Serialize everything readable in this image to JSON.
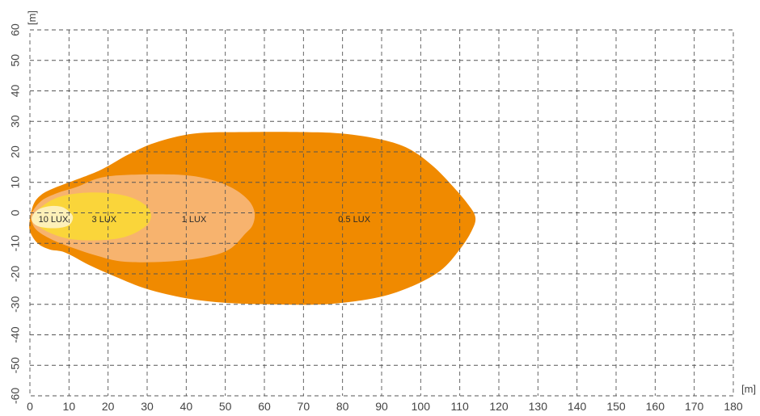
{
  "chart_data": {
    "type": "area",
    "title": "",
    "xlabel": "[m]",
    "ylabel": "[m]",
    "xlim": [
      0,
      180
    ],
    "ylim": [
      -60,
      60
    ],
    "x_ticks": [
      0,
      10,
      20,
      30,
      40,
      50,
      60,
      70,
      80,
      90,
      100,
      110,
      120,
      130,
      140,
      150,
      160,
      170,
      180
    ],
    "y_ticks": [
      60,
      50,
      40,
      30,
      20,
      10,
      0,
      -10,
      -20,
      -30,
      -40,
      -50,
      -60
    ],
    "grid": true,
    "series": [
      {
        "name": "0.5 LUX",
        "color": "#f08a00",
        "label_at": [
          83,
          -2
        ],
        "outline": [
          [
            0,
            -2
          ],
          [
            1,
            3
          ],
          [
            3,
            6
          ],
          [
            6,
            8
          ],
          [
            10,
            10
          ],
          [
            18,
            14
          ],
          [
            25,
            19
          ],
          [
            32,
            23
          ],
          [
            42,
            26
          ],
          [
            55,
            26.5
          ],
          [
            70,
            26.5
          ],
          [
            80,
            26
          ],
          [
            90,
            24
          ],
          [
            97,
            21
          ],
          [
            103,
            15.5
          ],
          [
            108,
            9
          ],
          [
            112,
            3
          ],
          [
            114,
            -1.5
          ],
          [
            113,
            -6
          ],
          [
            110,
            -12
          ],
          [
            105,
            -19
          ],
          [
            97,
            -24.5
          ],
          [
            88,
            -28
          ],
          [
            75,
            -30
          ],
          [
            62,
            -30
          ],
          [
            50,
            -29.5
          ],
          [
            40,
            -28
          ],
          [
            30,
            -25
          ],
          [
            22,
            -21
          ],
          [
            15,
            -17
          ],
          [
            9,
            -13
          ],
          [
            5,
            -12
          ],
          [
            2,
            -10
          ],
          [
            0,
            -6
          ]
        ]
      },
      {
        "name": "1 LUX",
        "color": "#f7b36e",
        "label_at": [
          42,
          -2
        ],
        "outline": [
          [
            0.5,
            0
          ],
          [
            3,
            4
          ],
          [
            7,
            6.5
          ],
          [
            12,
            8.5
          ],
          [
            18,
            11.5
          ],
          [
            26,
            12.5
          ],
          [
            38,
            12.5
          ],
          [
            46,
            11
          ],
          [
            52,
            8
          ],
          [
            56,
            4
          ],
          [
            57.5,
            0
          ],
          [
            57,
            -4
          ],
          [
            55,
            -7
          ],
          [
            51,
            -12
          ],
          [
            45,
            -14.5
          ],
          [
            35,
            -16
          ],
          [
            24,
            -16
          ],
          [
            17,
            -14
          ],
          [
            11,
            -11.5
          ],
          [
            6,
            -9
          ],
          [
            2,
            -6
          ],
          [
            0.5,
            -3
          ]
        ]
      },
      {
        "name": "3 LUX",
        "color": "#fad53a",
        "label_at": [
          19,
          -2
        ],
        "outline": [
          [
            1,
            -1
          ],
          [
            3,
            2
          ],
          [
            7,
            5
          ],
          [
            13,
            6.5
          ],
          [
            20,
            6.5
          ],
          [
            26,
            5
          ],
          [
            30,
            2
          ],
          [
            31,
            -1.5
          ],
          [
            29,
            -5
          ],
          [
            24,
            -8
          ],
          [
            17,
            -9
          ],
          [
            10,
            -8.5
          ],
          [
            5,
            -6.5
          ],
          [
            2,
            -4
          ]
        ]
      },
      {
        "name": "10 LUX",
        "color": "#fdf0b8",
        "label_at": [
          6,
          -2
        ],
        "outline": [
          [
            0.5,
            -1.5
          ],
          [
            2,
            1
          ],
          [
            5,
            2.2
          ],
          [
            8,
            2
          ],
          [
            10,
            0.5
          ],
          [
            11,
            -1.5
          ],
          [
            10,
            -4
          ],
          [
            7,
            -5
          ],
          [
            3,
            -4.7
          ],
          [
            1,
            -3.5
          ]
        ]
      }
    ]
  }
}
